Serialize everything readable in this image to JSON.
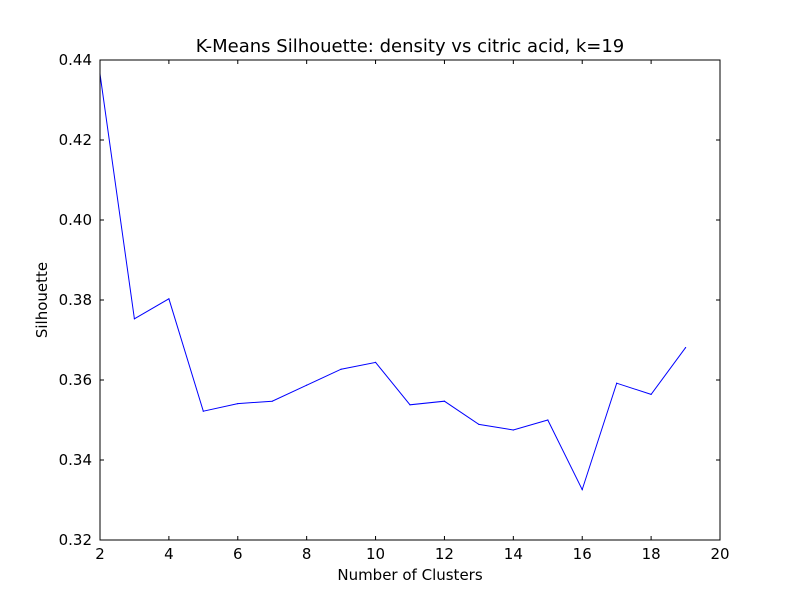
{
  "chart_data": {
    "type": "line",
    "title": "K-Means Silhouette: density vs citric acid, k=19",
    "xlabel": "Number of Clusters",
    "ylabel": "Silhouette",
    "xlim": [
      2,
      20
    ],
    "ylim": [
      0.32,
      0.44
    ],
    "xticks": [
      2,
      4,
      6,
      8,
      10,
      12,
      14,
      16,
      18,
      20
    ],
    "yticks": [
      0.32,
      0.34,
      0.36,
      0.38,
      0.4,
      0.42,
      0.44
    ],
    "ytick_labels": [
      "0.32",
      "0.34",
      "0.36",
      "0.38",
      "0.40",
      "0.42",
      "0.44"
    ],
    "grid": false,
    "series": [
      {
        "color": "#0000ff",
        "x": [
          2,
          3,
          4,
          5,
          6,
          7,
          8,
          9,
          10,
          11,
          12,
          13,
          14,
          15,
          16,
          17,
          18,
          19
        ],
        "y": [
          0.4365,
          0.3753,
          0.3803,
          0.3522,
          0.3541,
          0.3547,
          0.3587,
          0.3627,
          0.3644,
          0.3538,
          0.3547,
          0.3489,
          0.3475,
          0.35,
          0.3326,
          0.3592,
          0.3564,
          0.3681
        ]
      }
    ]
  }
}
